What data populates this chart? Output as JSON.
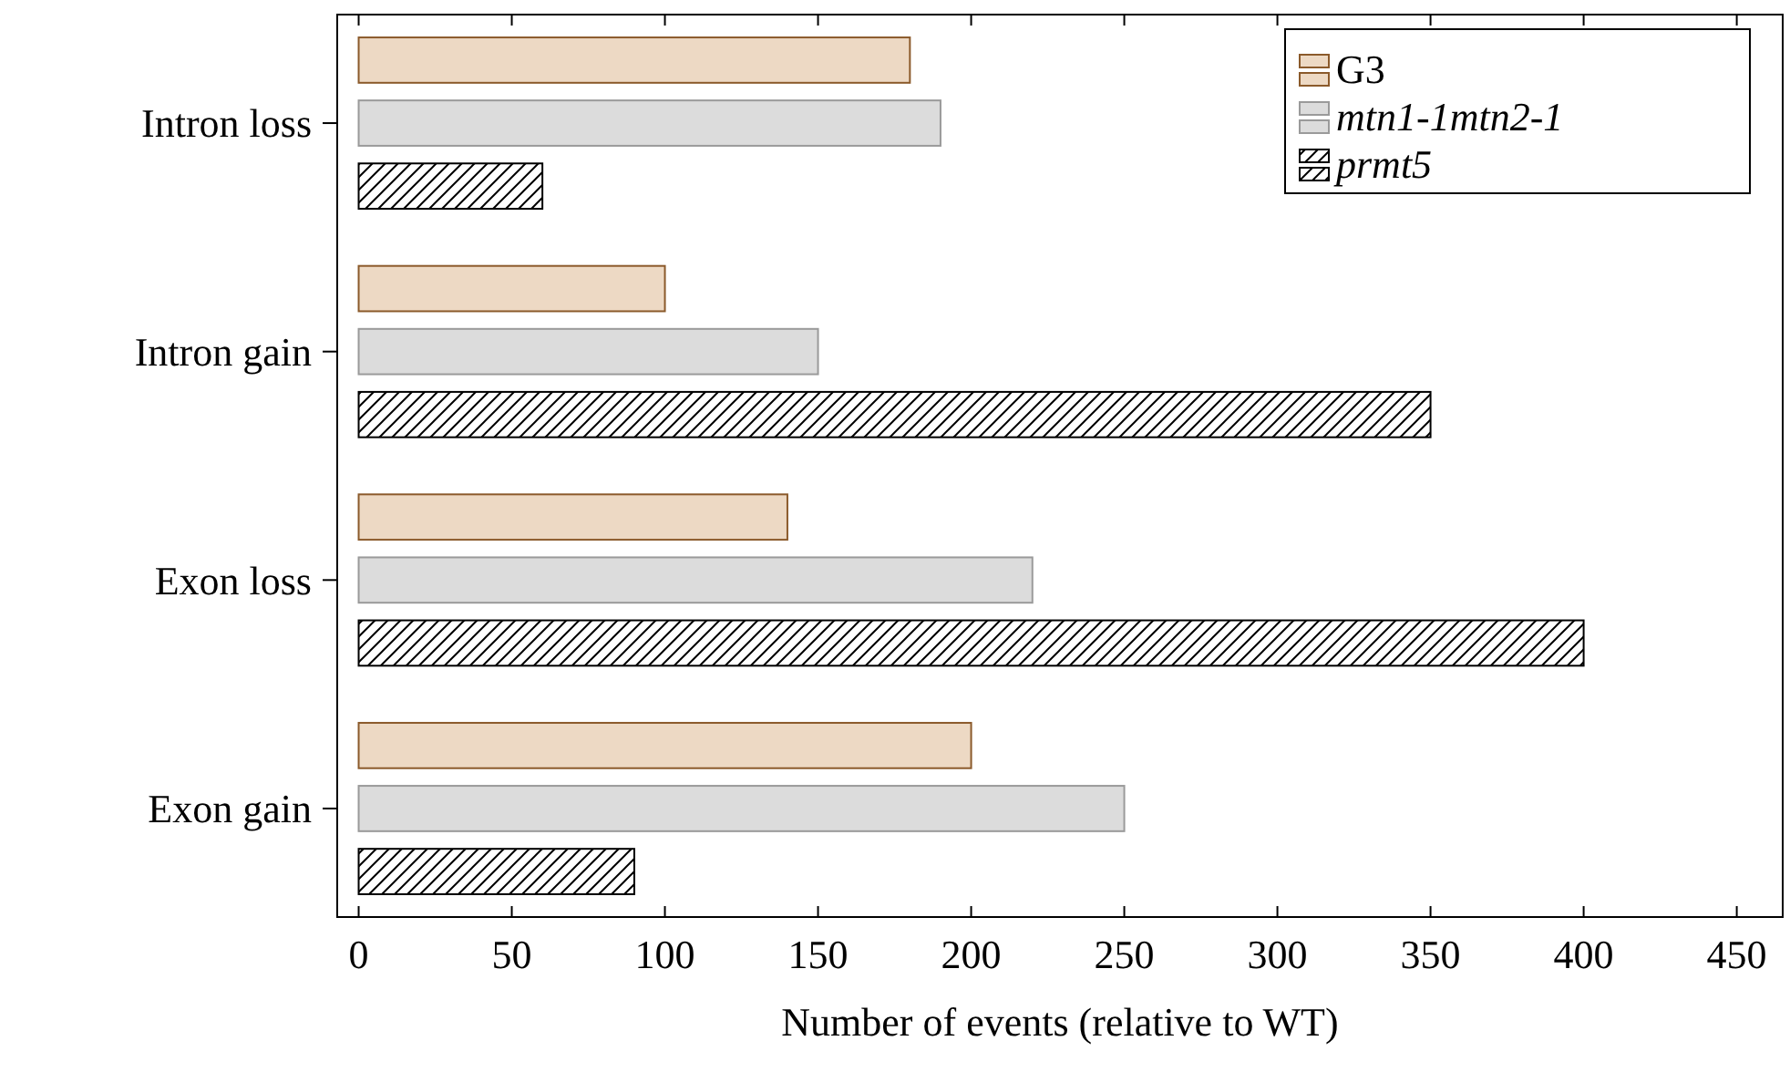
{
  "chart_data": {
    "type": "bar",
    "orientation": "horizontal",
    "xlabel": "Number of events (relative to WT)",
    "categories": [
      "Intron loss",
      "Intron gain",
      "Exon loss",
      "Exon gain"
    ],
    "series": [
      {
        "name": "G3",
        "color": "#edd9c4",
        "values": [
          180,
          100,
          140,
          200
        ]
      },
      {
        "name": "mtn1-1mtn2-1",
        "color": "#dcdcdc",
        "values": [
          190,
          150,
          220,
          250
        ]
      },
      {
        "name": "prmt5",
        "color": "#000000",
        "values": [
          60,
          350,
          400,
          90
        ]
      }
    ],
    "xlim": [
      -7,
      465
    ],
    "xticks": [
      0,
      50,
      100,
      150,
      200,
      250,
      300,
      350,
      400,
      450
    ],
    "grid": false,
    "legend": "top right"
  }
}
